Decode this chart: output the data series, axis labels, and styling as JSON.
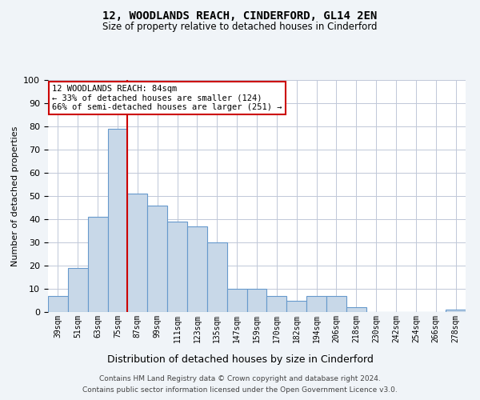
{
  "title": "12, WOODLANDS REACH, CINDERFORD, GL14 2EN",
  "subtitle": "Size of property relative to detached houses in Cinderford",
  "xlabel": "Distribution of detached houses by size in Cinderford",
  "ylabel": "Number of detached properties",
  "categories": [
    "39sqm",
    "51sqm",
    "63sqm",
    "75sqm",
    "87sqm",
    "99sqm",
    "111sqm",
    "123sqm",
    "135sqm",
    "147sqm",
    "159sqm",
    "170sqm",
    "182sqm",
    "194sqm",
    "206sqm",
    "218sqm",
    "230sqm",
    "242sqm",
    "254sqm",
    "266sqm",
    "278sqm"
  ],
  "values": [
    7,
    19,
    41,
    79,
    51,
    46,
    39,
    37,
    30,
    10,
    10,
    7,
    5,
    7,
    7,
    2,
    0,
    0,
    0,
    0,
    1
  ],
  "bar_color": "#c8d8e8",
  "bar_edge_color": "#6699cc",
  "red_line_x": 3.5,
  "annotation_text": "12 WOODLANDS REACH: 84sqm\n← 33% of detached houses are smaller (124)\n66% of semi-detached houses are larger (251) →",
  "annotation_box_color": "#ffffff",
  "annotation_box_edge": "#cc0000",
  "ylim": [
    0,
    100
  ],
  "yticks": [
    0,
    10,
    20,
    30,
    40,
    50,
    60,
    70,
    80,
    90,
    100
  ],
  "footer_line1": "Contains HM Land Registry data © Crown copyright and database right 2024.",
  "footer_line2": "Contains public sector information licensed under the Open Government Licence v3.0.",
  "bg_color": "#f0f4f8",
  "plot_bg_color": "#ffffff",
  "grid_color": "#c0c8d8"
}
